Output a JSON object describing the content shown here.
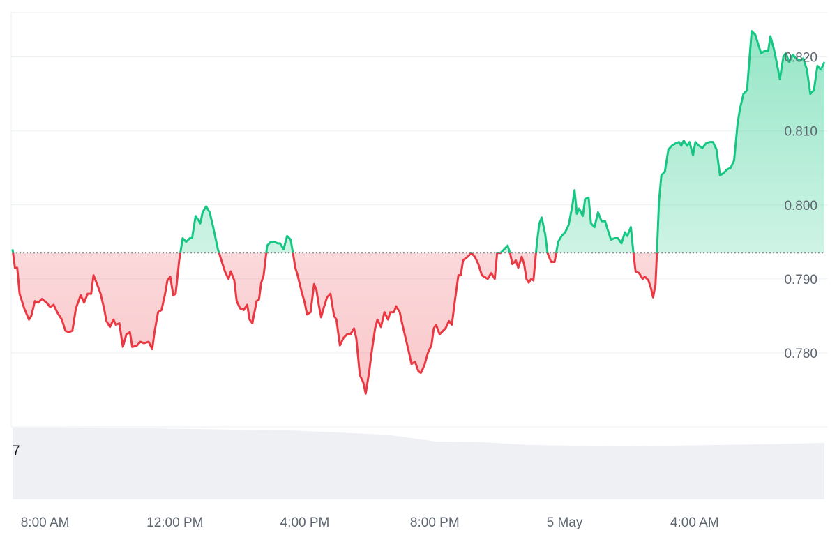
{
  "chart_data": {
    "type": "area",
    "baseline": 0.7935,
    "ylim": [
      0.77,
      0.826
    ],
    "y_ticks": [
      {
        "value": 0.78,
        "label": "0.780"
      },
      {
        "value": 0.79,
        "label": "0.790"
      },
      {
        "value": 0.8,
        "label": "0.800"
      },
      {
        "value": 0.81,
        "label": "0.810"
      },
      {
        "value": 0.82,
        "label": "0.820"
      }
    ],
    "x_ticks": [
      {
        "t": 1.0,
        "label": "8:00 AM"
      },
      {
        "t": 5.0,
        "label": "12:00 PM"
      },
      {
        "t": 9.0,
        "label": "4:00 PM"
      },
      {
        "t": 13.0,
        "label": "8:00 PM"
      },
      {
        "t": 17.0,
        "label": "5 May"
      },
      {
        "t": 21.0,
        "label": "4:00 AM"
      }
    ],
    "xlim": [
      0.0,
      25.0
    ],
    "colors": {
      "up": "#16c784",
      "down": "#ea3943",
      "volume": "#eef0f4",
      "grid": "#eceff3"
    },
    "volume_label": "7",
    "series": [
      {
        "values": [
          [
            0.0,
            0.794
          ],
          [
            0.1,
            0.7915
          ],
          [
            0.2,
            0.7915
          ],
          [
            0.3,
            0.788
          ],
          [
            0.5,
            0.786
          ],
          [
            0.7,
            0.7845
          ],
          [
            0.8,
            0.785
          ],
          [
            0.95,
            0.787
          ],
          [
            1.1,
            0.7868
          ],
          [
            1.25,
            0.7873
          ],
          [
            1.45,
            0.7868
          ],
          [
            1.6,
            0.7862
          ],
          [
            1.75,
            0.7865
          ],
          [
            1.9,
            0.7855
          ],
          [
            2.1,
            0.7845
          ],
          [
            2.25,
            0.783
          ],
          [
            2.4,
            0.7828
          ],
          [
            2.55,
            0.783
          ],
          [
            2.7,
            0.786
          ],
          [
            2.9,
            0.7878
          ],
          [
            3.05,
            0.7868
          ],
          [
            3.2,
            0.788
          ],
          [
            3.35,
            0.788
          ],
          [
            3.45,
            0.7905
          ],
          [
            3.6,
            0.7893
          ],
          [
            3.75,
            0.788
          ],
          [
            3.9,
            0.786
          ],
          [
            4.0,
            0.7843
          ],
          [
            4.15,
            0.7835
          ],
          [
            4.3,
            0.7845
          ],
          [
            4.4,
            0.7838
          ],
          [
            4.55,
            0.784
          ],
          [
            4.7,
            0.7808
          ],
          [
            4.85,
            0.7825
          ],
          [
            5.0,
            0.7828
          ],
          [
            5.1,
            0.7808
          ],
          [
            5.3,
            0.781
          ],
          [
            5.45,
            0.7815
          ],
          [
            5.6,
            0.7813
          ],
          [
            5.8,
            0.7815
          ],
          [
            5.95,
            0.7805
          ],
          [
            6.05,
            0.7828
          ],
          [
            6.2,
            0.7855
          ],
          [
            6.35,
            0.7858
          ],
          [
            6.5,
            0.788
          ],
          [
            6.6,
            0.7898
          ],
          [
            6.72,
            0.7903
          ],
          [
            6.85,
            0.7878
          ],
          [
            6.95,
            0.788
          ],
          [
            7.1,
            0.7925
          ],
          [
            7.25,
            0.7955
          ],
          [
            7.4,
            0.795
          ],
          [
            7.55,
            0.7955
          ],
          [
            7.65,
            0.7955
          ],
          [
            7.8,
            0.7985
          ],
          [
            7.95,
            0.7978
          ],
          [
            8.0,
            0.7975
          ],
          [
            8.1,
            0.799
          ],
          [
            8.25,
            0.7998
          ],
          [
            8.4,
            0.799
          ],
          [
            8.55,
            0.797
          ],
          [
            8.65,
            0.7955
          ],
          [
            8.75,
            0.794
          ],
          [
            8.9,
            0.7925
          ],
          [
            9.05,
            0.791
          ],
          [
            9.2,
            0.79
          ],
          [
            9.3,
            0.791
          ],
          [
            9.45,
            0.7898
          ],
          [
            9.55,
            0.787
          ],
          [
            9.7,
            0.786
          ],
          [
            9.85,
            0.7858
          ],
          [
            10.0,
            0.7865
          ],
          [
            10.1,
            0.7845
          ],
          [
            10.22,
            0.784
          ],
          [
            10.4,
            0.787
          ],
          [
            10.5,
            0.7872
          ],
          [
            10.6,
            0.7895
          ],
          [
            10.7,
            0.7905
          ],
          [
            10.85,
            0.7945
          ],
          [
            11.0,
            0.795
          ],
          [
            11.15,
            0.795
          ],
          [
            11.3,
            0.7948
          ],
          [
            11.4,
            0.7948
          ],
          [
            11.55,
            0.794
          ],
          [
            11.7,
            0.7958
          ],
          [
            11.85,
            0.7953
          ],
          [
            11.95,
            0.7935
          ],
          [
            12.05,
            0.7915
          ],
          [
            12.15,
            0.7905
          ],
          [
            12.3,
            0.7885
          ],
          [
            12.45,
            0.7868
          ],
          [
            12.55,
            0.7852
          ],
          [
            12.7,
            0.7855
          ],
          [
            12.85,
            0.7893
          ],
          [
            12.95,
            0.7885
          ],
          [
            13.05,
            0.7865
          ],
          [
            13.15,
            0.7848
          ],
          [
            13.25,
            0.786
          ],
          [
            13.4,
            0.7875
          ],
          [
            13.55,
            0.788
          ],
          [
            13.7,
            0.785
          ],
          [
            13.8,
            0.7845
          ],
          [
            13.95,
            0.781
          ],
          [
            14.1,
            0.782
          ],
          [
            14.25,
            0.7825
          ],
          [
            14.4,
            0.7825
          ],
          [
            14.55,
            0.7833
          ],
          [
            14.65,
            0.782
          ],
          [
            14.8,
            0.777
          ],
          [
            14.95,
            0.776
          ],
          [
            15.05,
            0.7745
          ],
          [
            15.2,
            0.7775
          ],
          [
            15.3,
            0.78
          ],
          [
            15.45,
            0.7833
          ],
          [
            15.55,
            0.7845
          ],
          [
            15.7,
            0.7835
          ],
          [
            15.85,
            0.7855
          ],
          [
            16.0,
            0.7845
          ],
          [
            16.1,
            0.7855
          ],
          [
            16.25,
            0.7855
          ],
          [
            16.35,
            0.7863
          ],
          [
            16.5,
            0.7855
          ],
          [
            16.6,
            0.784
          ],
          [
            16.75,
            0.782
          ],
          [
            16.9,
            0.78
          ],
          [
            17.0,
            0.7785
          ],
          [
            17.15,
            0.7788
          ],
          [
            17.3,
            0.7775
          ],
          [
            17.4,
            0.7773
          ],
          [
            17.55,
            0.7783
          ],
          [
            17.7,
            0.78
          ],
          [
            17.85,
            0.781
          ],
          [
            17.95,
            0.7833
          ],
          [
            18.05,
            0.7838
          ],
          [
            18.2,
            0.7825
          ],
          [
            18.35,
            0.783
          ],
          [
            18.45,
            0.7833
          ],
          [
            18.6,
            0.7843
          ],
          [
            18.72,
            0.7838
          ],
          [
            18.85,
            0.787
          ],
          [
            19.0,
            0.7905
          ]
        ]
      }
    ],
    "series_tail": [
      [
        19.1,
        0.7905
      ],
      [
        19.2,
        0.7925
      ],
      [
        19.4,
        0.793
      ],
      [
        19.55,
        0.7935
      ],
      [
        19.7,
        0.793
      ],
      [
        19.85,
        0.792
      ],
      [
        20.0,
        0.7905
      ],
      [
        20.1,
        0.7903
      ],
      [
        20.25,
        0.79
      ],
      [
        20.4,
        0.7908
      ],
      [
        20.55,
        0.79
      ],
      [
        20.65,
        0.7935
      ],
      [
        20.8,
        0.7935
      ],
      [
        20.95,
        0.794
      ],
      [
        21.1,
        0.7945
      ],
      [
        21.2,
        0.7935
      ],
      [
        21.3,
        0.792
      ],
      [
        21.45,
        0.7925
      ],
      [
        21.55,
        0.7915
      ],
      [
        21.7,
        0.793
      ],
      [
        21.8,
        0.792
      ],
      [
        21.9,
        0.79
      ],
      [
        22.0,
        0.7895
      ],
      [
        22.1,
        0.79
      ],
      [
        22.2,
        0.7898
      ],
      [
        22.35,
        0.795
      ],
      [
        22.45,
        0.7975
      ],
      [
        22.55,
        0.7983
      ],
      [
        22.7,
        0.796
      ],
      [
        22.8,
        0.7935
      ],
      [
        22.95,
        0.7923
      ],
      [
        23.1,
        0.7923
      ],
      [
        23.25,
        0.795
      ],
      [
        23.4,
        0.7958
      ],
      [
        23.55,
        0.7963
      ],
      [
        23.7,
        0.7973
      ],
      [
        23.85,
        0.7998
      ],
      [
        23.95,
        0.802
      ],
      [
        24.05,
        0.7988
      ],
      [
        24.15,
        0.7995
      ],
      [
        24.3,
        0.7985
      ],
      [
        24.4,
        0.8008
      ],
      [
        24.55,
        0.801
      ],
      [
        24.65,
        0.7975
      ],
      [
        24.8,
        0.797
      ],
      [
        24.95,
        0.799
      ],
      [
        25.1,
        0.7978
      ],
      [
        25.25,
        0.7978
      ],
      [
        25.35,
        0.7968
      ],
      [
        25.5,
        0.7953
      ],
      [
        25.65,
        0.7955
      ],
      [
        25.8,
        0.7955
      ],
      [
        25.95,
        0.7948
      ],
      [
        26.1,
        0.7963
      ],
      [
        26.2,
        0.7958
      ],
      [
        26.35,
        0.797
      ],
      [
        26.45,
        0.7938
      ],
      [
        26.55,
        0.791
      ],
      [
        26.7,
        0.7908
      ],
      [
        26.85,
        0.79
      ],
      [
        26.95,
        0.7903
      ],
      [
        27.1,
        0.7898
      ],
      [
        27.2,
        0.7888
      ],
      [
        27.3,
        0.7875
      ],
      [
        27.4,
        0.7893
      ],
      [
        27.45,
        0.7928
      ],
      [
        27.55,
        0.8005
      ],
      [
        27.65,
        0.804
      ],
      [
        27.8,
        0.8045
      ],
      [
        27.95,
        0.8075
      ],
      [
        28.1,
        0.808
      ],
      [
        28.25,
        0.8083
      ],
      [
        28.4,
        0.8085
      ],
      [
        28.5,
        0.808
      ],
      [
        28.6,
        0.8087
      ],
      [
        28.75,
        0.808
      ],
      [
        28.85,
        0.8085
      ],
      [
        29.0,
        0.8067
      ],
      [
        29.1,
        0.8085
      ],
      [
        29.25,
        0.808
      ],
      [
        29.4,
        0.8077
      ],
      [
        29.55,
        0.8083
      ],
      [
        29.7,
        0.8085
      ],
      [
        29.85,
        0.8085
      ],
      [
        30.0,
        0.8075
      ],
      [
        30.15,
        0.804
      ],
      [
        30.3,
        0.8043
      ],
      [
        30.45,
        0.8048
      ],
      [
        30.6,
        0.805
      ],
      [
        30.75,
        0.806
      ],
      [
        30.9,
        0.811
      ],
      [
        31.0,
        0.813
      ],
      [
        31.15,
        0.815
      ],
      [
        31.3,
        0.8155
      ],
      [
        31.4,
        0.8195
      ],
      [
        31.5,
        0.8235
      ],
      [
        31.65,
        0.823
      ],
      [
        31.75,
        0.822
      ],
      [
        31.9,
        0.8205
      ],
      [
        32.05,
        0.8208
      ],
      [
        32.2,
        0.8208
      ],
      [
        32.3,
        0.8228
      ],
      [
        32.45,
        0.821
      ],
      [
        32.55,
        0.8195
      ],
      [
        32.7,
        0.817
      ],
      [
        32.85,
        0.82
      ],
      [
        32.95,
        0.8205
      ],
      [
        33.1,
        0.8193
      ],
      [
        33.25,
        0.8203
      ],
      [
        33.4,
        0.8198
      ],
      [
        33.55,
        0.8195
      ],
      [
        33.7,
        0.8198
      ],
      [
        33.85,
        0.8183
      ],
      [
        34.0,
        0.815
      ],
      [
        34.15,
        0.8155
      ],
      [
        34.3,
        0.8188
      ],
      [
        34.45,
        0.8183
      ],
      [
        34.6,
        0.8193
      ]
    ],
    "volume": [
      [
        0.0,
        0.99
      ],
      [
        2.0,
        0.99
      ],
      [
        4.0,
        0.98
      ],
      [
        6.0,
        0.98
      ],
      [
        8.0,
        0.97
      ],
      [
        10.0,
        0.96
      ],
      [
        12.0,
        0.95
      ],
      [
        14.0,
        0.92
      ],
      [
        16.0,
        0.89
      ],
      [
        18.0,
        0.8
      ],
      [
        20.0,
        0.79
      ],
      [
        22.0,
        0.75
      ],
      [
        24.0,
        0.74
      ],
      [
        26.0,
        0.73
      ],
      [
        28.0,
        0.74
      ],
      [
        30.0,
        0.75
      ],
      [
        32.0,
        0.76
      ],
      [
        34.6,
        0.78
      ]
    ]
  }
}
